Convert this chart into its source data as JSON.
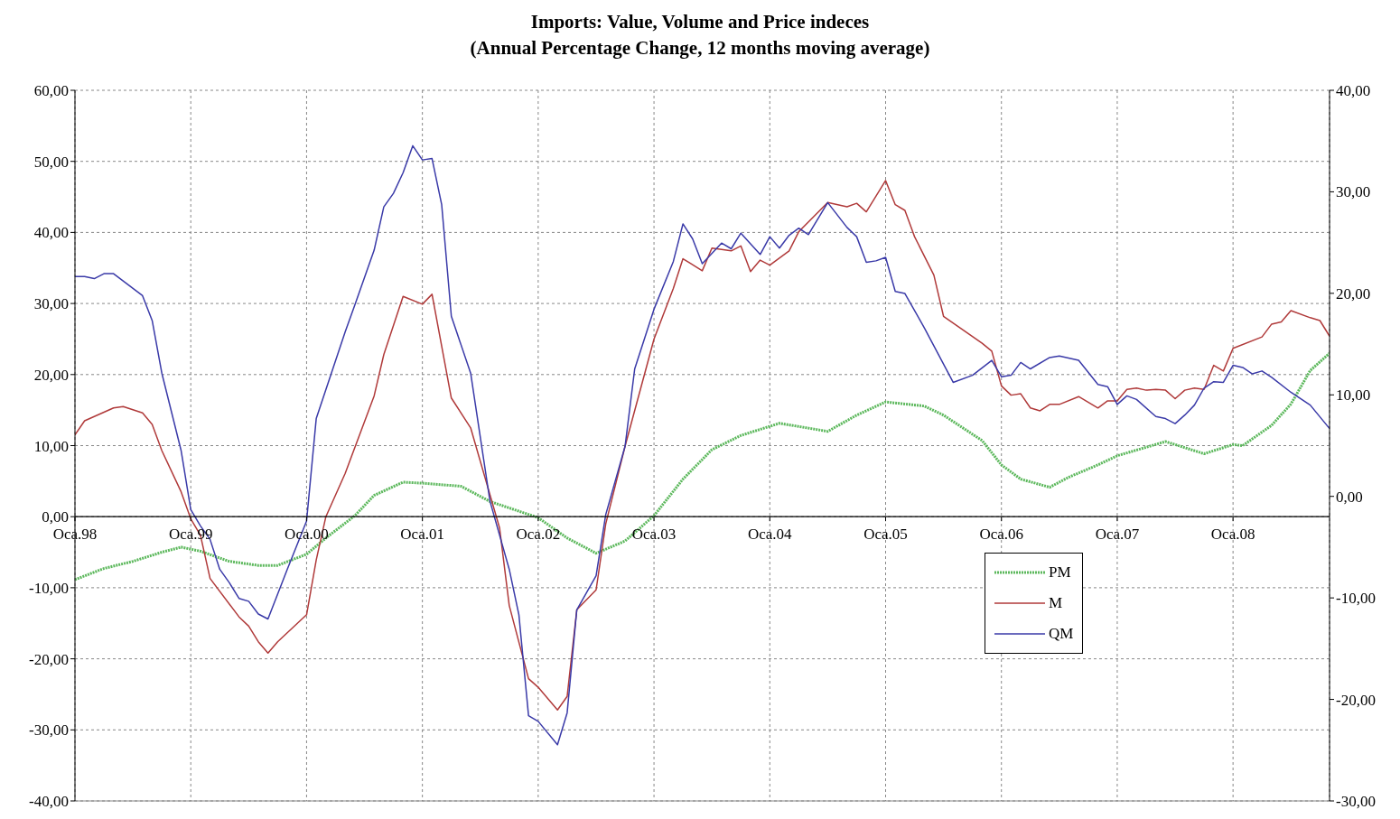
{
  "chart_data": {
    "type": "line",
    "title": "Imports: Value, Volume and Price indeces",
    "subtitle": "(Annual Percentage Change, 12 months moving average)",
    "xlim": [
      "1998-01",
      "2008-11"
    ],
    "xticks": [
      {
        "value": "1998-01",
        "label": "Oca.98"
      },
      {
        "value": "1999-01",
        "label": "Oca.99"
      },
      {
        "value": "2000-01",
        "label": "Oca.00"
      },
      {
        "value": "2001-01",
        "label": "Oca.01"
      },
      {
        "value": "2002-01",
        "label": "Oca.02"
      },
      {
        "value": "2003-01",
        "label": "Oca.03"
      },
      {
        "value": "2004-01",
        "label": "Oca.04"
      },
      {
        "value": "2005-01",
        "label": "Oca.05"
      },
      {
        "value": "2006-01",
        "label": "Oca.06"
      },
      {
        "value": "2007-01",
        "label": "Oca.07"
      },
      {
        "value": "2008-01",
        "label": "Oca.08"
      }
    ],
    "ylim": [
      -40,
      60
    ],
    "yticks": [
      {
        "value": -40,
        "label": "-40,00"
      },
      {
        "value": -30,
        "label": "-30,00"
      },
      {
        "value": -20,
        "label": "-20,00"
      },
      {
        "value": -10,
        "label": "-10,00"
      },
      {
        "value": 0,
        "label": "0,00"
      },
      {
        "value": 10,
        "label": "10,00"
      },
      {
        "value": 20,
        "label": "20,00"
      },
      {
        "value": 30,
        "label": "30,00"
      },
      {
        "value": 40,
        "label": "40,00"
      },
      {
        "value": 50,
        "label": "50,00"
      },
      {
        "value": 60,
        "label": "60,00"
      }
    ],
    "y2lim": [
      -30,
      40
    ],
    "y2ticks": [
      {
        "value": -30,
        "label": "-30,00"
      },
      {
        "value": -20,
        "label": "-20,00"
      },
      {
        "value": -10,
        "label": "-10,00"
      },
      {
        "value": 0,
        "label": "0,00"
      },
      {
        "value": 10,
        "label": "10,00"
      },
      {
        "value": 20,
        "label": "20,00"
      },
      {
        "value": 30,
        "label": "30,00"
      },
      {
        "value": 40,
        "label": "40,00"
      }
    ],
    "grid": true,
    "legend": "bottom right",
    "series": [
      {
        "name": "PM",
        "color": "#5cb85c",
        "axis": "y2",
        "line_style": "dotted",
        "x": [
          "1998-01",
          "1998-04",
          "1998-07",
          "1998-10",
          "1998-12",
          "1999-02",
          "1999-05",
          "1999-08",
          "1999-10",
          "2000-01",
          "2000-03",
          "2000-06",
          "2000-08",
          "2000-11",
          "2001-01",
          "2001-05",
          "2001-08",
          "2002-01",
          "2002-04",
          "2002-07",
          "2002-10",
          "2003-01",
          "2003-04",
          "2003-07",
          "2003-10",
          "2004-02",
          "2004-07",
          "2004-10",
          "2005-01",
          "2005-05",
          "2005-07",
          "2005-11",
          "2006-01",
          "2006-03",
          "2006-06",
          "2006-08",
          "2006-11",
          "2007-01",
          "2007-06",
          "2007-10",
          "2008-01",
          "2008-02",
          "2008-05",
          "2008-07",
          "2008-09",
          "2008-11"
        ],
        "values": [
          -8.2,
          -7.1,
          -6.4,
          -5.5,
          -5.0,
          -5.4,
          -6.4,
          -6.8,
          -6.8,
          -5.7,
          -4.1,
          -1.9,
          0.1,
          1.4,
          1.3,
          1.0,
          -0.5,
          -2.1,
          -4.1,
          -5.6,
          -4.4,
          -1.9,
          1.7,
          4.6,
          6.0,
          7.2,
          6.4,
          8.0,
          9.3,
          8.9,
          8.0,
          5.5,
          3.1,
          1.7,
          0.9,
          1.9,
          3.1,
          4.0,
          5.4,
          4.2,
          5.1,
          5.0,
          7.0,
          9.1,
          12.4,
          14.1
        ]
      },
      {
        "name": "M",
        "color": "#b03a3a",
        "line_style": "solid",
        "x": [
          "1998-01",
          "1998-02",
          "1998-03",
          "1998-05",
          "1998-06",
          "1998-08",
          "1998-09",
          "1998-10",
          "1998-12",
          "1999-01",
          "1999-02",
          "1999-03",
          "1999-06",
          "1999-07",
          "1999-08",
          "1999-09",
          "1999-10",
          "2000-01",
          "2000-02",
          "2000-03",
          "2000-05",
          "2000-08",
          "2000-09",
          "2000-11",
          "2001-01",
          "2001-02",
          "2001-04",
          "2001-06",
          "2001-09",
          "2001-10",
          "2001-12",
          "2002-01",
          "2002-03",
          "2002-04",
          "2002-05",
          "2002-07",
          "2002-08",
          "2002-10",
          "2003-01",
          "2003-03",
          "2003-04",
          "2003-06",
          "2003-07",
          "2003-09",
          "2003-10",
          "2003-11",
          "2003-12",
          "2004-01",
          "2004-03",
          "2004-04",
          "2004-07",
          "2004-09",
          "2004-10",
          "2004-11",
          "2005-01",
          "2005-02",
          "2005-03",
          "2005-04",
          "2005-06",
          "2005-07",
          "2005-11",
          "2005-12",
          "2006-01",
          "2006-02",
          "2006-03",
          "2006-04",
          "2006-05",
          "2006-06",
          "2006-07",
          "2006-09",
          "2006-11",
          "2006-12",
          "2007-01",
          "2007-02",
          "2007-03",
          "2007-04",
          "2007-05",
          "2007-06",
          "2007-07",
          "2007-08",
          "2007-09",
          "2007-10",
          "2007-11",
          "2007-12",
          "2008-01",
          "2008-04",
          "2008-05",
          "2008-06",
          "2008-07",
          "2008-09",
          "2008-10",
          "2008-11"
        ],
        "values": [
          11.5,
          13.5,
          14.1,
          15.3,
          15.5,
          14.6,
          13.0,
          9.3,
          3.5,
          -0.3,
          -2.6,
          -8.7,
          -14.1,
          -15.4,
          -17.6,
          -19.2,
          -17.6,
          -13.8,
          -6.1,
          0,
          6.1,
          17.0,
          22.8,
          31.0,
          29.9,
          31.3,
          16.7,
          12.5,
          -1.6,
          -12.5,
          -22.8,
          -24.0,
          -27.2,
          -25.3,
          -13.1,
          -10.3,
          -1.0,
          9.9,
          25.0,
          32.1,
          36.3,
          34.6,
          37.8,
          37.4,
          38.1,
          34.5,
          36.1,
          35.4,
          37.4,
          40.1,
          44.2,
          43.6,
          44.1,
          42.9,
          47.3,
          43.9,
          43.1,
          39.4,
          34.0,
          28.2,
          24.4,
          23.3,
          18.4,
          17.1,
          17.3,
          15.3,
          14.9,
          15.8,
          15.8,
          16.9,
          15.3,
          16.3,
          16.3,
          17.9,
          18.1,
          17.8,
          17.9,
          17.8,
          16.6,
          17.8,
          18.1,
          17.9,
          21.3,
          20.5,
          23.7,
          25.3,
          27.1,
          27.4,
          29.0,
          28.0,
          27.6,
          25.4
        ]
      },
      {
        "name": "QM",
        "color": "#3a3aa8",
        "line_style": "solid",
        "x": [
          "1998-01",
          "1998-02",
          "1998-03",
          "1998-04",
          "1998-05",
          "1998-08",
          "1998-09",
          "1998-10",
          "1998-12",
          "1999-01",
          "1999-02",
          "1999-03",
          "1999-04",
          "1999-05",
          "1999-06",
          "1999-07",
          "1999-08",
          "1999-09",
          "1999-11",
          "2000-01",
          "2000-02",
          "2000-05",
          "2000-06",
          "2000-08",
          "2000-09",
          "2000-10",
          "2000-11",
          "2000-12",
          "2001-01",
          "2001-02",
          "2001-03",
          "2001-04",
          "2001-06",
          "2001-08",
          "2001-10",
          "2001-11",
          "2001-12",
          "2002-01",
          "2002-03",
          "2002-04",
          "2002-05",
          "2002-07",
          "2002-08",
          "2002-10",
          "2002-11",
          "2003-01",
          "2003-03",
          "2003-04",
          "2003-05",
          "2003-06",
          "2003-08",
          "2003-09",
          "2003-10",
          "2003-12",
          "2004-01",
          "2004-02",
          "2004-03",
          "2004-04",
          "2004-05",
          "2004-07",
          "2004-09",
          "2004-10",
          "2004-11",
          "2004-12",
          "2005-01",
          "2005-02",
          "2005-03",
          "2005-05",
          "2005-08",
          "2005-10",
          "2005-12",
          "2006-01",
          "2006-02",
          "2006-03",
          "2006-04",
          "2006-06",
          "2006-07",
          "2006-09",
          "2006-11",
          "2006-12",
          "2007-01",
          "2007-02",
          "2007-03",
          "2007-05",
          "2007-06",
          "2007-07",
          "2007-08",
          "2007-09",
          "2007-10",
          "2007-11",
          "2007-12",
          "2008-01",
          "2008-02",
          "2008-03",
          "2008-04",
          "2008-05",
          "2008-07",
          "2008-09",
          "2008-11"
        ],
        "values": [
          33.8,
          33.8,
          33.5,
          34.2,
          34.2,
          31.1,
          27.6,
          20.2,
          9.3,
          1.0,
          -1.3,
          -3.2,
          -7.4,
          -9.3,
          -11.5,
          -11.9,
          -13.7,
          -14.4,
          -7.4,
          -0.6,
          13.8,
          26.0,
          29.8,
          37.5,
          43.6,
          45.5,
          48.4,
          52.2,
          50.2,
          50.4,
          43.9,
          28.2,
          20.2,
          2.2,
          -7.4,
          -13.8,
          -28.0,
          -28.8,
          -32.1,
          -27.6,
          -13.1,
          -8.3,
          0.3,
          9.9,
          20.8,
          29.2,
          35.9,
          41.2,
          39.1,
          35.6,
          38.5,
          37.7,
          39.9,
          36.9,
          39.4,
          37.8,
          39.6,
          40.6,
          39.7,
          44.2,
          40.7,
          39.4,
          35.8,
          36.0,
          36.5,
          31.7,
          31.4,
          26.6,
          18.9,
          19.9,
          22.0,
          19.7,
          19.9,
          21.7,
          20.8,
          22.4,
          22.6,
          22.0,
          18.6,
          18.3,
          15.8,
          17.0,
          16.5,
          14.1,
          13.8,
          13.1,
          14.3,
          15.7,
          18.1,
          19.0,
          18.9,
          21.3,
          21.0,
          20.1,
          20.5,
          19.6,
          17.5,
          15.7,
          12.4
        ]
      }
    ]
  }
}
